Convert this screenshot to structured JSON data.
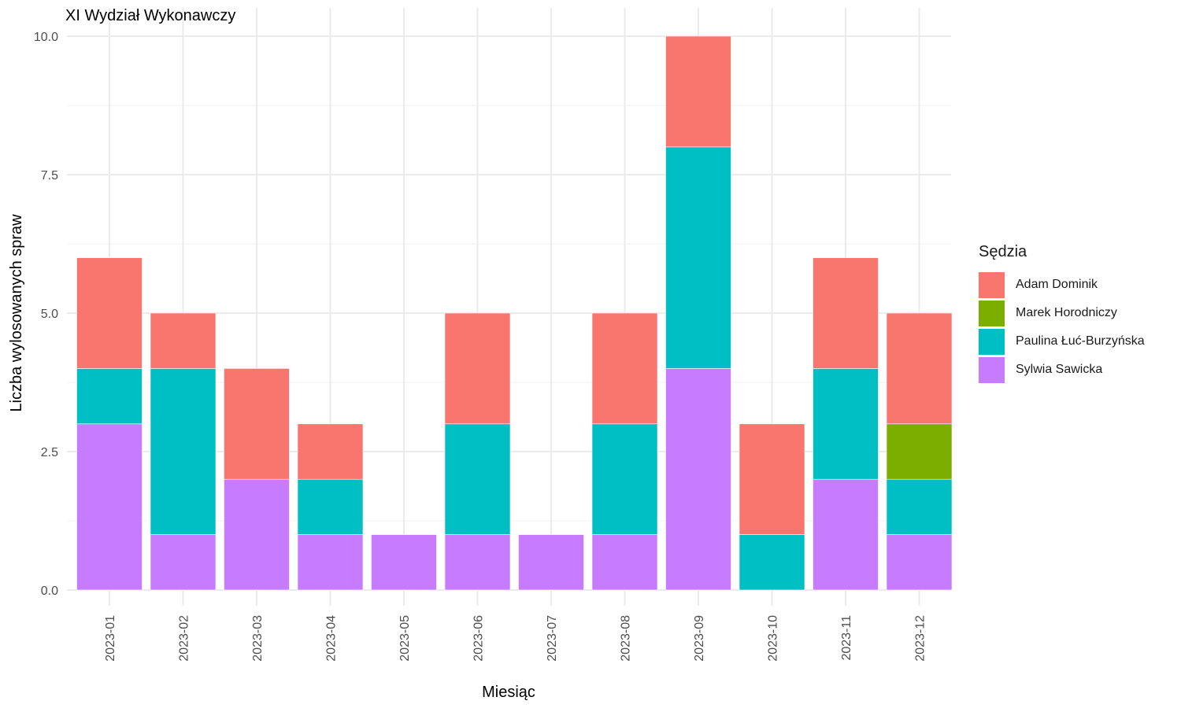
{
  "chart_data": {
    "type": "bar",
    "stacked": true,
    "title": "XI Wydział Wykonawczy",
    "xlabel": "Miesiąc",
    "ylabel": "Liczba wylosowanych spraw",
    "ylim": [
      0,
      10
    ],
    "yticks": [
      "0.0",
      "2.5",
      "5.0",
      "7.5",
      "10.0"
    ],
    "grid": true,
    "legend_position": "right",
    "legend_title": "Sędzia",
    "categories": [
      "2023-01",
      "2023-02",
      "2023-03",
      "2023-04",
      "2023-05",
      "2023-06",
      "2023-07",
      "2023-08",
      "2023-09",
      "2023-10",
      "2023-11",
      "2023-12"
    ],
    "series": [
      {
        "name": "Sylwia Sawicka",
        "color": "#C77CFF",
        "values": [
          3,
          1,
          2,
          1,
          1,
          1,
          1,
          1,
          4,
          0,
          2,
          1
        ]
      },
      {
        "name": "Paulina Łuć-Burzyńska",
        "color": "#00BFC4",
        "values": [
          1,
          3,
          0,
          1,
          0,
          2,
          0,
          2,
          4,
          1,
          2,
          1
        ]
      },
      {
        "name": "Marek Horodniczy",
        "color": "#7CAE00",
        "values": [
          0,
          0,
          0,
          0,
          0,
          0,
          0,
          0,
          0,
          0,
          0,
          1
        ]
      },
      {
        "name": "Adam Dominik",
        "color": "#F8766D",
        "values": [
          2,
          1,
          2,
          1,
          0,
          2,
          0,
          2,
          2,
          2,
          2,
          2
        ]
      }
    ],
    "legend_order": [
      "Adam Dominik",
      "Marek Horodniczy",
      "Paulina Łuć-Burzyńska",
      "Sylwia Sawicka"
    ]
  }
}
